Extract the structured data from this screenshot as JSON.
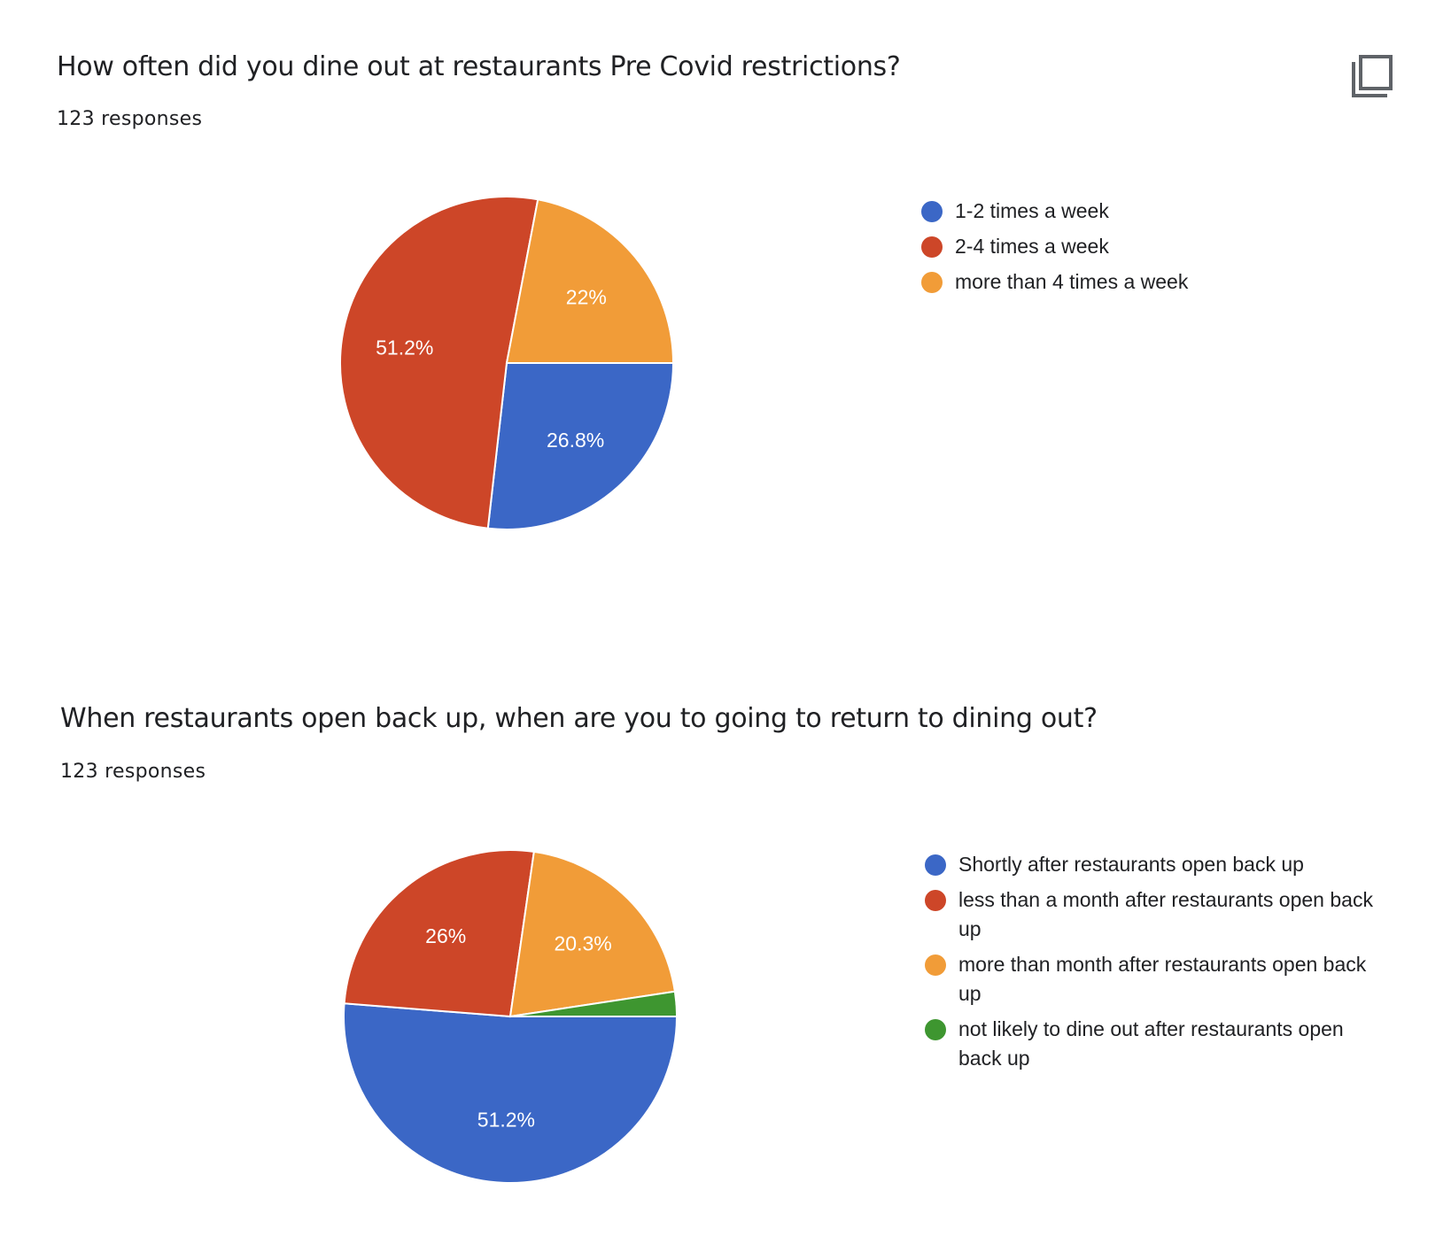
{
  "charts": [
    {
      "question": "How often did you dine out at restaurants Pre Covid restrictions?",
      "responses": "123 responses",
      "chart_data": {
        "type": "pie",
        "title": "How often did you dine out at restaurants Pre Covid restrictions?",
        "slices": [
          {
            "label": "1-2 times a week",
            "value": 26.8,
            "value_label": "26.8%",
            "color": "#3b67c6"
          },
          {
            "label": "2-4 times a week",
            "value": 51.2,
            "value_label": "51.2%",
            "color": "#cd4628"
          },
          {
            "label": "more than 4 times a week",
            "value": 22.0,
            "value_label": "22%",
            "color": "#f19c38"
          }
        ],
        "legend_position": "right"
      }
    },
    {
      "question": "When restaurants open back up, when are you to going to return to dining out?",
      "responses": "123 responses",
      "chart_data": {
        "type": "pie",
        "title": "When restaurants open back up, when are you to going to return to dining out?",
        "slices": [
          {
            "label": "Shortly after restaurants open back up",
            "value": 51.2,
            "value_label": "51.2%",
            "color": "#3b67c6"
          },
          {
            "label": "less than a month after restaurants open back up",
            "value": 26.0,
            "value_label": "26%",
            "color": "#cd4628"
          },
          {
            "label": "more than month after restaurants open back up",
            "value": 20.3,
            "value_label": "20.3%",
            "color": "#f19c38"
          },
          {
            "label": "not likely to dine out after restaurants open back up",
            "value": 2.4,
            "value_label": "",
            "color": "#3e9630"
          }
        ],
        "legend_position": "right"
      }
    }
  ],
  "toolbar": {
    "copy_icon": "copy-icon"
  }
}
